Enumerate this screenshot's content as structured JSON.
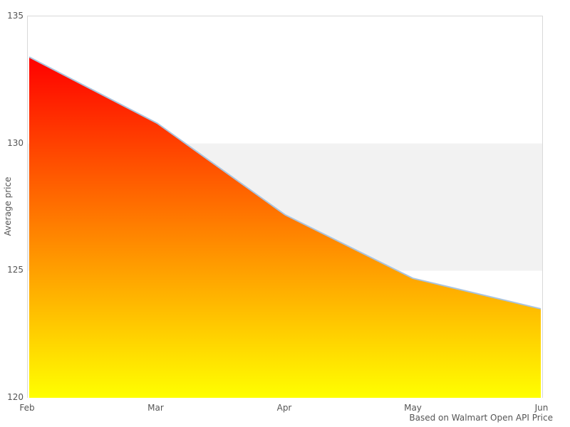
{
  "chart_data": {
    "type": "area",
    "categories": [
      "Feb",
      "Mar",
      "Apr",
      "May",
      "Jun"
    ],
    "values": [
      133.4,
      130.8,
      127.2,
      124.7,
      123.5
    ],
    "title": "",
    "xlabel": "",
    "ylabel": "Average price",
    "ylim": [
      120,
      135
    ],
    "yticks": [
      135,
      130,
      125,
      120
    ],
    "grid": false,
    "legend": false,
    "plot_band": {
      "from": 125,
      "to": 130,
      "color": "#f2f2f2"
    },
    "caption": "Based on Walmart Open API Price",
    "colors": {
      "area_gradient_top": "#ff0000",
      "area_gradient_bottom": "#ffff00",
      "line": "#aac4de",
      "plot_border": "#d9d9d9",
      "tick_text": "#555555",
      "background": "#ffffff"
    }
  }
}
